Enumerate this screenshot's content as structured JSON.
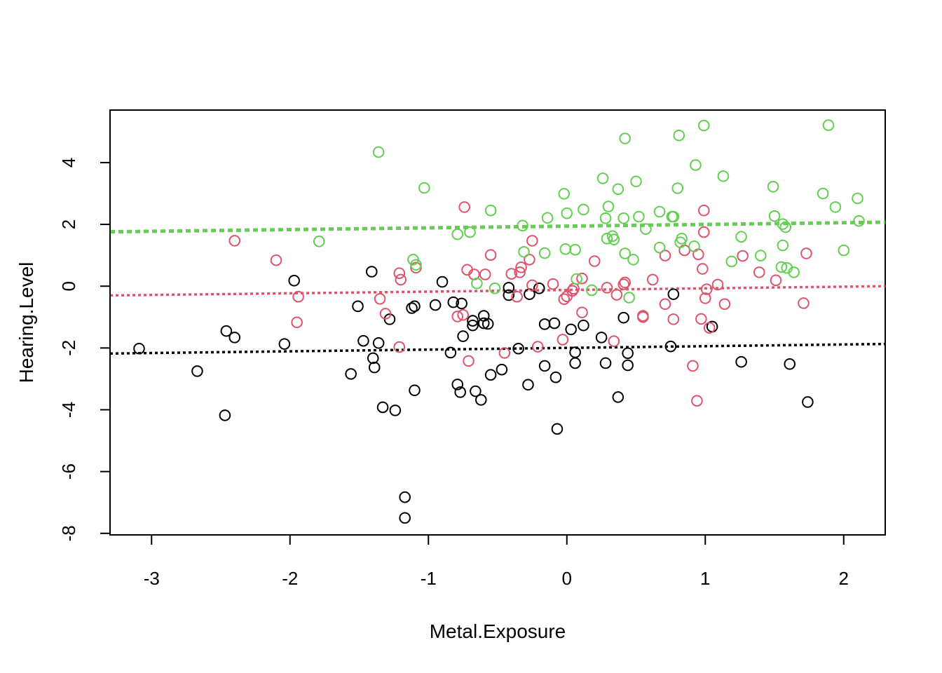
{
  "chart_data": {
    "type": "scatter",
    "title": "",
    "xlabel": "Metal.Exposure",
    "ylabel": "Hearing.Level",
    "xlim": [
      -3.3,
      2.3
    ],
    "ylim": [
      -8.05,
      5.7
    ],
    "x_ticks": [
      "-3",
      "-2",
      "-1",
      "0",
      "1",
      "2"
    ],
    "y_ticks": [
      "-8",
      "-6",
      "-4",
      "-2",
      "0",
      "2",
      "4"
    ],
    "grid": false,
    "legend": "none",
    "series": [
      {
        "color": "#000000",
        "marker": "open-circle",
        "points": [
          [
            -3.09,
            -2.02
          ],
          [
            -2.67,
            -2.75
          ],
          [
            -2.46,
            -1.45
          ],
          [
            -2.47,
            -4.18
          ],
          [
            -2.4,
            -1.66
          ],
          [
            -1.97,
            0.18
          ],
          [
            -2.04,
            -1.87
          ],
          [
            -1.56,
            -2.84
          ],
          [
            -1.51,
            -0.65
          ],
          [
            -1.47,
            -1.77
          ],
          [
            -1.41,
            0.47
          ],
          [
            -1.4,
            -2.33
          ],
          [
            -1.39,
            -2.63
          ],
          [
            -1.36,
            -1.84
          ],
          [
            -1.33,
            -3.92
          ],
          [
            -1.28,
            -1.07
          ],
          [
            -1.24,
            -4.02
          ],
          [
            -1.17,
            -6.83
          ],
          [
            -1.17,
            -7.5
          ],
          [
            -1.12,
            -0.71
          ],
          [
            -1.1,
            -0.65
          ],
          [
            -1.1,
            -3.37
          ],
          [
            -0.95,
            -0.61
          ],
          [
            -0.9,
            0.14
          ],
          [
            -0.84,
            -2.15
          ],
          [
            -0.82,
            -0.52
          ],
          [
            -0.79,
            -3.18
          ],
          [
            -0.77,
            -3.43
          ],
          [
            -0.76,
            -0.56
          ],
          [
            -0.75,
            -1.62
          ],
          [
            -0.68,
            -1.12
          ],
          [
            -0.68,
            -1.27
          ],
          [
            -0.66,
            -3.4
          ],
          [
            -0.62,
            -3.68
          ],
          [
            -0.6,
            -0.96
          ],
          [
            -0.6,
            -1.2
          ],
          [
            -0.57,
            -1.22
          ],
          [
            -0.55,
            -2.87
          ],
          [
            -0.47,
            -2.7
          ],
          [
            -0.42,
            -0.05
          ],
          [
            -0.42,
            -0.29
          ],
          [
            -0.35,
            -2.02
          ],
          [
            -0.28,
            -3.19
          ],
          [
            -0.27,
            -0.26
          ],
          [
            -0.2,
            -0.07
          ],
          [
            -0.16,
            -1.23
          ],
          [
            -0.16,
            -2.58
          ],
          [
            -0.09,
            -1.2
          ],
          [
            -0.08,
            -2.95
          ],
          [
            -0.07,
            -4.62
          ],
          [
            0.03,
            -1.4
          ],
          [
            0.06,
            -2.14
          ],
          [
            0.06,
            -2.49
          ],
          [
            0.12,
            -1.27
          ],
          [
            0.25,
            -1.66
          ],
          [
            0.28,
            -2.49
          ],
          [
            0.37,
            -3.59
          ],
          [
            0.41,
            -1.02
          ],
          [
            0.44,
            -2.17
          ],
          [
            0.44,
            -2.56
          ],
          [
            0.75,
            -1.95
          ],
          [
            0.77,
            -0.26
          ],
          [
            1.05,
            -1.31
          ],
          [
            1.26,
            -2.45
          ],
          [
            1.61,
            -2.52
          ],
          [
            1.74,
            -3.75
          ]
        ]
      },
      {
        "color": "#DF536B",
        "marker": "open-circle",
        "points": [
          [
            -2.4,
            1.47
          ],
          [
            -2.1,
            0.84
          ],
          [
            -1.95,
            -1.17
          ],
          [
            -1.94,
            -0.34
          ],
          [
            -1.35,
            -0.41
          ],
          [
            -1.31,
            -0.89
          ],
          [
            -1.21,
            0.42
          ],
          [
            -1.21,
            -1.97
          ],
          [
            -1.2,
            0.21
          ],
          [
            -1.09,
            0.6
          ],
          [
            -0.79,
            -0.98
          ],
          [
            -0.75,
            -0.93
          ],
          [
            -0.74,
            2.56
          ],
          [
            -0.72,
            0.53
          ],
          [
            -0.71,
            -2.42
          ],
          [
            -0.67,
            0.38
          ],
          [
            -0.59,
            0.38
          ],
          [
            -0.55,
            1.01
          ],
          [
            -0.45,
            -2.16
          ],
          [
            -0.4,
            0.4
          ],
          [
            -0.36,
            -0.34
          ],
          [
            -0.34,
            0.45
          ],
          [
            -0.33,
            0.61
          ],
          [
            -0.27,
            0.86
          ],
          [
            -0.25,
            1.47
          ],
          [
            -0.25,
            0.03
          ],
          [
            -0.21,
            -1.96
          ],
          [
            -0.1,
            0.07
          ],
          [
            -0.03,
            -1.73
          ],
          [
            -0.02,
            -0.42
          ],
          [
            0.0,
            -0.33
          ],
          [
            0.04,
            -0.15
          ],
          [
            0.05,
            -0.08
          ],
          [
            0.11,
            -0.85
          ],
          [
            0.11,
            0.25
          ],
          [
            0.2,
            0.81
          ],
          [
            0.29,
            -0.05
          ],
          [
            0.34,
            -1.78
          ],
          [
            0.36,
            -0.28
          ],
          [
            0.41,
            0.06
          ],
          [
            0.42,
            0.12
          ],
          [
            0.55,
            -0.96
          ],
          [
            0.55,
            -1.0
          ],
          [
            0.62,
            0.21
          ],
          [
            0.71,
            -0.58
          ],
          [
            0.71,
            0.99
          ],
          [
            0.77,
            -1.07
          ],
          [
            0.85,
            1.16
          ],
          [
            0.91,
            -2.58
          ],
          [
            0.94,
            -3.71
          ],
          [
            0.95,
            1.03
          ],
          [
            0.97,
            -1.06
          ],
          [
            0.98,
            0.56
          ],
          [
            0.99,
            2.45
          ],
          [
            0.99,
            1.75
          ],
          [
            1.0,
            -0.39
          ],
          [
            1.01,
            -0.1
          ],
          [
            1.03,
            -1.35
          ],
          [
            1.09,
            0.05
          ],
          [
            1.14,
            -0.58
          ],
          [
            1.27,
            0.98
          ],
          [
            1.39,
            0.45
          ],
          [
            1.51,
            0.19
          ],
          [
            1.71,
            -0.55
          ],
          [
            1.73,
            1.06
          ]
        ]
      },
      {
        "color": "#61D04F",
        "marker": "open-circle",
        "points": [
          [
            -1.79,
            1.45
          ],
          [
            -1.36,
            4.34
          ],
          [
            -1.03,
            3.18
          ],
          [
            -1.11,
            0.86
          ],
          [
            -1.09,
            0.69
          ],
          [
            -0.79,
            1.68
          ],
          [
            -0.7,
            1.75
          ],
          [
            -0.65,
            0.09
          ],
          [
            -0.55,
            2.45
          ],
          [
            -0.52,
            -0.07
          ],
          [
            -0.32,
            1.96
          ],
          [
            -0.31,
            1.11
          ],
          [
            -0.16,
            1.07
          ],
          [
            -0.14,
            2.21
          ],
          [
            -0.02,
            2.99
          ],
          [
            -0.01,
            1.2
          ],
          [
            0.0,
            2.36
          ],
          [
            0.06,
            1.18
          ],
          [
            0.07,
            0.23
          ],
          [
            0.12,
            2.48
          ],
          [
            0.18,
            -0.13
          ],
          [
            0.26,
            3.49
          ],
          [
            0.28,
            2.2
          ],
          [
            0.29,
            1.54
          ],
          [
            0.3,
            2.58
          ],
          [
            0.33,
            1.62
          ],
          [
            0.34,
            1.51
          ],
          [
            0.37,
            3.14
          ],
          [
            0.41,
            2.2
          ],
          [
            0.42,
            1.06
          ],
          [
            0.42,
            4.78
          ],
          [
            0.45,
            -0.37
          ],
          [
            0.48,
            0.86
          ],
          [
            0.5,
            3.39
          ],
          [
            0.52,
            2.25
          ],
          [
            0.57,
            1.85
          ],
          [
            0.67,
            2.41
          ],
          [
            0.67,
            1.25
          ],
          [
            0.76,
            2.25
          ],
          [
            0.77,
            2.25
          ],
          [
            0.8,
            3.17
          ],
          [
            0.81,
            4.88
          ],
          [
            0.82,
            1.42
          ],
          [
            0.83,
            1.54
          ],
          [
            0.92,
            1.29
          ],
          [
            0.93,
            3.92
          ],
          [
            0.99,
            5.2
          ],
          [
            1.13,
            3.56
          ],
          [
            1.19,
            0.8
          ],
          [
            1.26,
            1.6
          ],
          [
            1.4,
            0.99
          ],
          [
            1.49,
            3.22
          ],
          [
            1.5,
            2.27
          ],
          [
            1.55,
            0.62
          ],
          [
            1.56,
            1.32
          ],
          [
            1.56,
            2.01
          ],
          [
            1.58,
            1.91
          ],
          [
            1.59,
            0.59
          ],
          [
            1.64,
            0.45
          ],
          [
            1.85,
            3.0
          ],
          [
            1.89,
            5.21
          ],
          [
            1.94,
            2.56
          ],
          [
            2.0,
            1.16
          ],
          [
            2.1,
            2.84
          ],
          [
            2.11,
            2.11
          ]
        ]
      }
    ],
    "trend_lines": [
      {
        "color": "#000000",
        "x": [
          -3.3,
          2.3
        ],
        "y": [
          -2.18,
          -1.87
        ]
      },
      {
        "color": "#DF536B",
        "x": [
          -3.3,
          2.3
        ],
        "y": [
          -0.3,
          0.0
        ]
      },
      {
        "color": "#61D04F",
        "x": [
          -3.3,
          2.3
        ],
        "y": [
          1.76,
          2.07
        ]
      }
    ]
  }
}
